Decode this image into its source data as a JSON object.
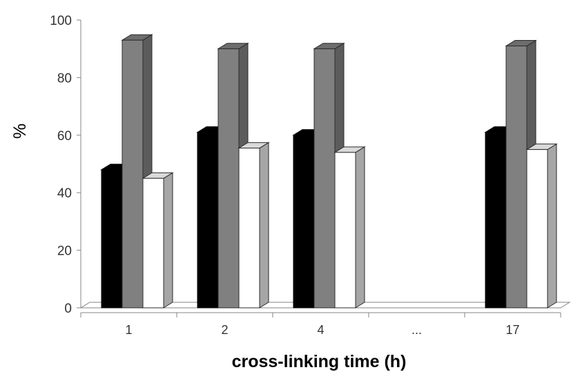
{
  "chart_data": {
    "type": "bar",
    "style": "3d-clustered-column",
    "categories": [
      "1",
      "2",
      "4",
      "...",
      "17"
    ],
    "series": [
      {
        "values": [
          48,
          61,
          60,
          null,
          61
        ],
        "color": "#000000"
      },
      {
        "values": [
          93,
          90,
          90,
          null,
          91
        ],
        "color": "#808080"
      },
      {
        "values": [
          45,
          55.5,
          54,
          null,
          55
        ],
        "color": "#ffffff"
      }
    ],
    "xlabel": "cross-linking time (h)",
    "ylabel": "%",
    "ylim": [
      0,
      100
    ],
    "yticks": [
      "0",
      "20",
      "40",
      "60",
      "80",
      "100"
    ],
    "grid": false,
    "legend": "none"
  }
}
